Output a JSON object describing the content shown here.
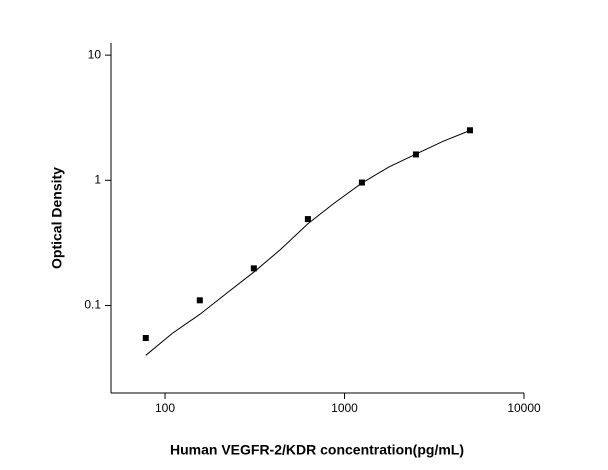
{
  "chart_data": {
    "type": "scatter",
    "x_label": "Human VEGFR-2/KDR concentration(pg/mL)",
    "y_label": "Optical Density",
    "xscale": "log",
    "yscale": "log",
    "xlim": [
      50,
      10000
    ],
    "ylim": [
      0.02,
      12.5
    ],
    "xticks": [
      100,
      1000,
      10000
    ],
    "yticks": [
      0.1,
      1,
      10
    ],
    "series": [
      {
        "kind": "points",
        "color": "#000000",
        "x": [
          78.125,
          156.25,
          312.5,
          625,
          1250,
          2500,
          5000
        ],
        "values": [
          0.055,
          0.11,
          0.198,
          0.49,
          0.96,
          1.61,
          2.51
        ]
      },
      {
        "kind": "line",
        "color": "#000000",
        "x": [
          78.125,
          110,
          156.25,
          220,
          312.5,
          440,
          625,
          880,
          1250,
          1770,
          2500,
          3540,
          5000
        ],
        "values": [
          0.04,
          0.06,
          0.085,
          0.125,
          0.185,
          0.28,
          0.45,
          0.66,
          0.95,
          1.28,
          1.62,
          2.05,
          2.5
        ]
      }
    ]
  }
}
